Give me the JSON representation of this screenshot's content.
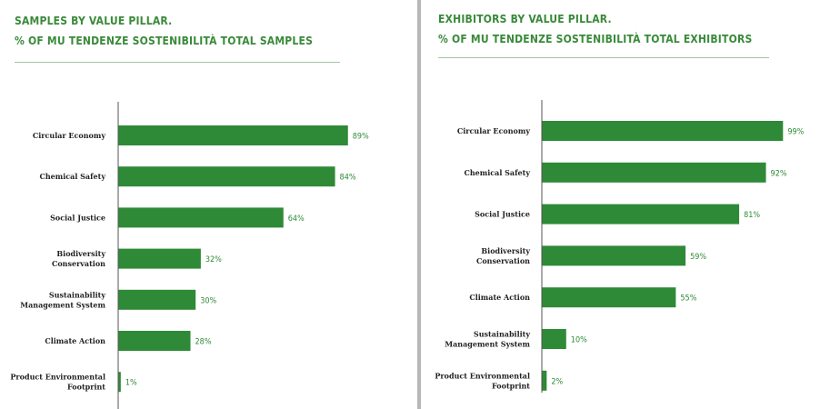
{
  "colors": {
    "bar": "#2e8a36",
    "title": "#3a8a3a",
    "divider": "#b8b8b8"
  },
  "chart_data": [
    {
      "type": "bar",
      "orientation": "horizontal",
      "title": "SAMPLES BY VALUE PILLAR.",
      "subtitle": "% OF MU TENDENZE SOSTENIBILITÀ TOTAL SAMPLES",
      "categories": [
        "Circular Economy",
        "Chemical Safety",
        "Social Justice",
        "Biodiversity Conservation",
        "Sustainability Management System",
        "Climate Action",
        "Product Environmental Footprint"
      ],
      "category_lines": [
        [
          "Circular Economy"
        ],
        [
          "Chemical Safety"
        ],
        [
          "Social Justice"
        ],
        [
          "Biodiversity",
          "Conservation"
        ],
        [
          "Sustainability",
          "Management System"
        ],
        [
          "Climate Action"
        ],
        [
          "Product Environmental",
          "Footprint"
        ]
      ],
      "values": [
        89,
        84,
        64,
        32,
        30,
        28,
        1
      ],
      "data_labels": [
        "89%",
        "84%",
        "64%",
        "32%",
        "30%",
        "28%",
        "1%"
      ],
      "xlim": [
        0,
        100
      ],
      "grid": false
    },
    {
      "type": "bar",
      "orientation": "horizontal",
      "title": "EXHIBITORS BY VALUE PILLAR.",
      "subtitle": "% OF MU TENDENZE SOSTENIBILITÀ TOTAL EXHIBITORS",
      "categories": [
        "Circular Economy",
        "Chemical Safety",
        "Social Justice",
        "Biodiversity Conservation",
        "Climate Action",
        "Sustainability Management System",
        "Product Environmental Footprint"
      ],
      "category_lines": [
        [
          "Circular Economy"
        ],
        [
          "Chemical Safety"
        ],
        [
          "Social Justice"
        ],
        [
          "Biodiversity",
          "Conservation"
        ],
        [
          "Climate Action"
        ],
        [
          "Sustainability",
          "Management System"
        ],
        [
          "Product Environmental",
          "Footprint"
        ]
      ],
      "values": [
        99,
        92,
        81,
        59,
        55,
        10,
        2
      ],
      "data_labels": [
        "99%",
        "92%",
        "81%",
        "59%",
        "55%",
        "10%",
        "2%"
      ],
      "xlim": [
        0,
        100
      ],
      "grid": false
    }
  ]
}
